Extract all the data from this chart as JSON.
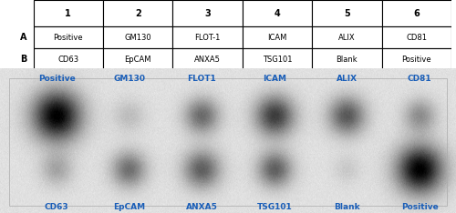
{
  "table_cols": [
    "1",
    "2",
    "3",
    "4",
    "5",
    "6"
  ],
  "table_row_labels": [
    "A",
    "B"
  ],
  "table_data": [
    [
      "Positive",
      "GM130",
      "FLOT-1",
      "ICAM",
      "ALIX",
      "CD81"
    ],
    [
      "CD63",
      "EpCAM",
      "ANXA5",
      "TSG101",
      "Blank",
      "Positive"
    ]
  ],
  "top_labels": [
    "Positive",
    "GM130",
    "FLOT1",
    "ICAM",
    "ALIX",
    "CD81"
  ],
  "bottom_labels": [
    "CD63",
    "EpCAM",
    "ANXA5",
    "TSG101",
    "Blank",
    "Positive"
  ],
  "label_color": "#1a5eb8",
  "dot_row1_darkness": [
    0.97,
    0.15,
    0.5,
    0.7,
    0.58,
    0.35
  ],
  "dot_row1_radius": [
    42,
    28,
    30,
    34,
    32,
    28
  ],
  "dot_row2_darkness": [
    0.25,
    0.48,
    0.55,
    0.55,
    0.1,
    0.97
  ],
  "dot_row2_radius": [
    28,
    30,
    32,
    30,
    24,
    40
  ],
  "figsize": [
    5.0,
    2.34
  ],
  "dpi": 100
}
